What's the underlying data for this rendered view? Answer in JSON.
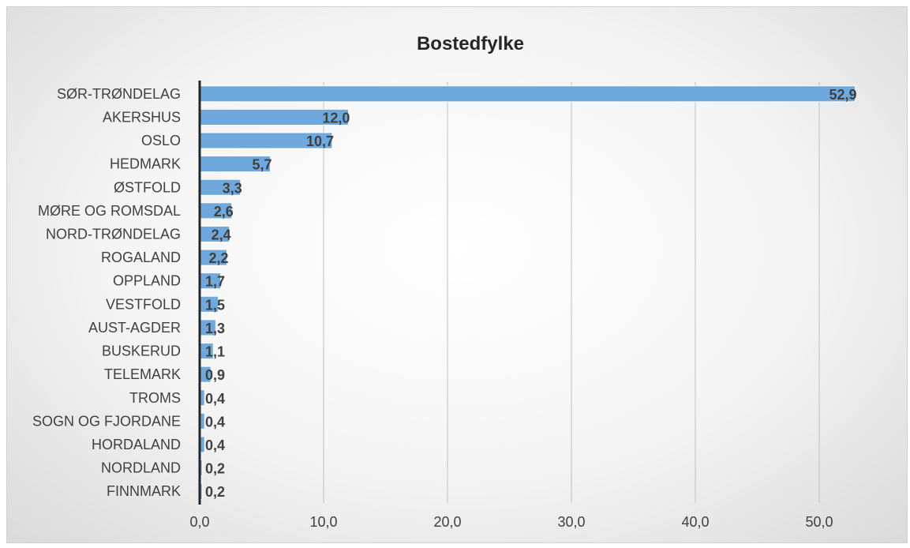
{
  "chart_data": {
    "type": "bar",
    "orientation": "horizontal",
    "title": "Bostedfylke",
    "xlabel": "",
    "ylabel": "",
    "categories": [
      "SØR-TRØNDELAG",
      "AKERSHUS",
      "OSLO",
      "HEDMARK",
      "ØSTFOLD",
      "MØRE OG ROMSDAL",
      "NORD-TRØNDELAG",
      "ROGALAND",
      "OPPLAND",
      "VESTFOLD",
      "AUST-AGDER",
      "BUSKERUD",
      "TELEMARK",
      "TROMS",
      "SOGN OG FJORDANE",
      "HORDALAND",
      "NORDLAND",
      "FINNMARK"
    ],
    "values": [
      52.9,
      12.0,
      10.7,
      5.7,
      3.3,
      2.6,
      2.4,
      2.2,
      1.7,
      1.5,
      1.3,
      1.1,
      0.9,
      0.4,
      0.4,
      0.4,
      0.2,
      0.2
    ],
    "value_labels": [
      "52,9",
      "12,0",
      "10,7",
      "5,7",
      "3,3",
      "2,6",
      "2,4",
      "2,2",
      "1,7",
      "1,5",
      "1,3",
      "1,1",
      "0,9",
      "0,4",
      "0,4",
      "0,4",
      "0,2",
      "0,2"
    ],
    "xlim": [
      0,
      53
    ],
    "x_ticks": [
      0,
      10,
      20,
      30,
      40,
      50
    ],
    "x_tick_labels": [
      "0,0",
      "10,0",
      "20,0",
      "30,0",
      "40,0",
      "50,0"
    ],
    "grid": "vertical",
    "legend": "none",
    "colors": {
      "bar_fill": "#6fa8dc",
      "bar_stroke": "#ffffff",
      "grid": "#bfbfbf",
      "axis": "#262626",
      "text": "#404040",
      "title": "#262626"
    }
  }
}
